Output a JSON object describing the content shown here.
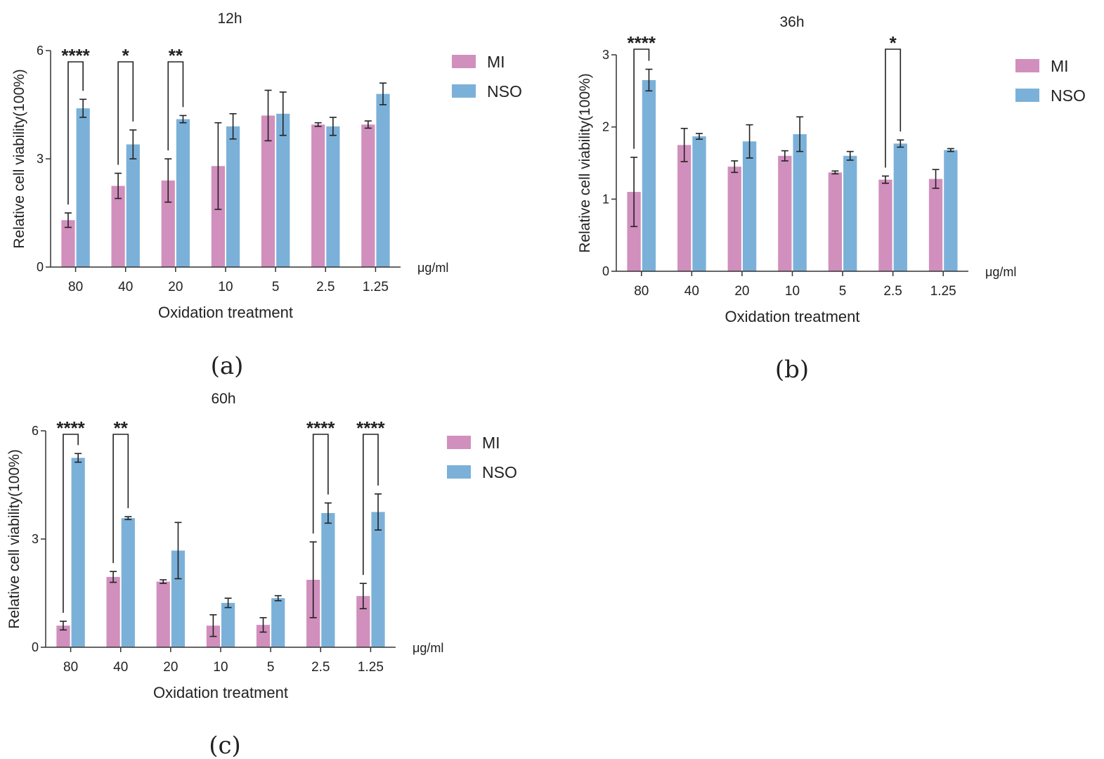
{
  "chart_data": [
    {
      "type": "bar",
      "panel": "(a)",
      "title": "12h",
      "xlabel": "Oxidation treatment",
      "ylabel": "Relative cell viability(100%)",
      "unit": "μg/ml",
      "categories": [
        "80",
        "40",
        "20",
        "10",
        "5",
        "2.5",
        "1.25"
      ],
      "ylim": [
        0,
        6
      ],
      "yticks": [
        "0",
        "3",
        "6"
      ],
      "series": [
        {
          "name": "MI",
          "color": "#d18fbd",
          "values": [
            1.3,
            2.25,
            2.4,
            2.8,
            4.2,
            3.95,
            3.95
          ],
          "errors": [
            0.2,
            0.35,
            0.6,
            1.2,
            0.7,
            0.05,
            0.1
          ]
        },
        {
          "name": "NSO",
          "color": "#7bb1d9",
          "values": [
            4.4,
            3.4,
            4.1,
            3.9,
            4.25,
            3.9,
            4.8
          ],
          "errors": [
            0.25,
            0.4,
            0.1,
            0.35,
            0.6,
            0.25,
            0.3
          ]
        }
      ],
      "significance": [
        {
          "category": 0,
          "label": "****"
        },
        {
          "category": 1,
          "label": "*"
        },
        {
          "category": 2,
          "label": "**"
        }
      ]
    },
    {
      "type": "bar",
      "panel": "(b)",
      "title": "36h",
      "xlabel": "Oxidation treatment",
      "ylabel": "Relative cell viability(100%)",
      "unit": "μg/ml",
      "categories": [
        "80",
        "40",
        "20",
        "10",
        "5",
        "2.5",
        "1.25"
      ],
      "ylim": [
        0,
        3
      ],
      "yticks": [
        "0",
        "1",
        "2",
        "3"
      ],
      "series": [
        {
          "name": "MI",
          "color": "#d18fbd",
          "values": [
            1.1,
            1.75,
            1.45,
            1.6,
            1.37,
            1.27,
            1.28
          ],
          "errors": [
            0.48,
            0.23,
            0.08,
            0.07,
            0.02,
            0.05,
            0.13
          ]
        },
        {
          "name": "NSO",
          "color": "#7bb1d9",
          "values": [
            2.65,
            1.87,
            1.8,
            1.9,
            1.6,
            1.77,
            1.68
          ],
          "errors": [
            0.15,
            0.04,
            0.23,
            0.24,
            0.06,
            0.05,
            0.02
          ]
        }
      ],
      "significance": [
        {
          "category": 0,
          "label": "****"
        },
        {
          "category": 5,
          "label": "*"
        }
      ]
    },
    {
      "type": "bar",
      "panel": "(c)",
      "title": "60h",
      "xlabel": "Oxidation treatment",
      "ylabel": "Relative cell viability(100%)",
      "unit": "μg/ml",
      "categories": [
        "80",
        "40",
        "20",
        "10",
        "5",
        "2.5",
        "1.25"
      ],
      "ylim": [
        0,
        6
      ],
      "yticks": [
        "0",
        "3",
        "6"
      ],
      "series": [
        {
          "name": "MI",
          "color": "#d18fbd",
          "values": [
            0.6,
            1.95,
            1.82,
            0.6,
            0.62,
            1.87,
            1.42
          ],
          "errors": [
            0.12,
            0.15,
            0.05,
            0.3,
            0.2,
            1.05,
            0.35
          ]
        },
        {
          "name": "NSO",
          "color": "#7bb1d9",
          "values": [
            5.25,
            3.58,
            2.68,
            1.23,
            1.36,
            3.72,
            3.75
          ],
          "errors": [
            0.12,
            0.04,
            0.78,
            0.13,
            0.07,
            0.28,
            0.5
          ]
        }
      ],
      "significance": [
        {
          "category": 0,
          "label": "****"
        },
        {
          "category": 1,
          "label": "**"
        },
        {
          "category": 5,
          "label": "****"
        },
        {
          "category": 6,
          "label": "****"
        }
      ]
    }
  ]
}
